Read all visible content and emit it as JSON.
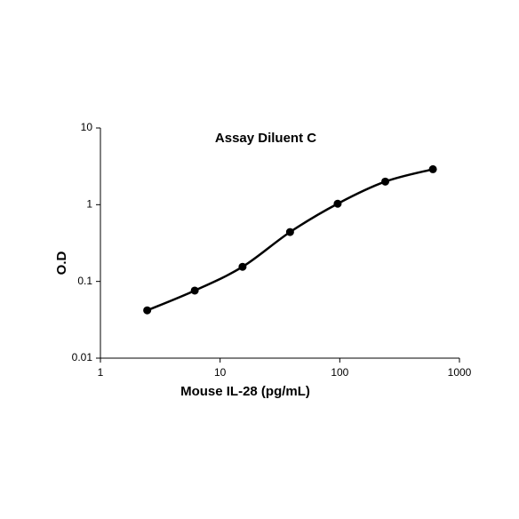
{
  "chart_data": {
    "type": "line",
    "title": "Assay Diluent C",
    "x_label": "Mouse IL-28 (pg/mL)",
    "y_label": "O.D",
    "x": [
      2.46,
      6.14,
      15.4,
      38.4,
      96,
      240,
      600
    ],
    "series": [
      {
        "name": "Assay Diluent C",
        "color": "#000000",
        "values": [
          0.042,
          0.076,
          0.155,
          0.44,
          1.03,
          2.0,
          2.9
        ]
      }
    ],
    "xlim": [
      1,
      1000
    ],
    "xticks": [
      1,
      10,
      100,
      1000
    ],
    "ylim": [
      0.01,
      10
    ],
    "yticks": [
      0.01,
      0.1,
      1,
      10
    ],
    "x_log": true,
    "y_log": true,
    "grid": false,
    "markers": true
  }
}
